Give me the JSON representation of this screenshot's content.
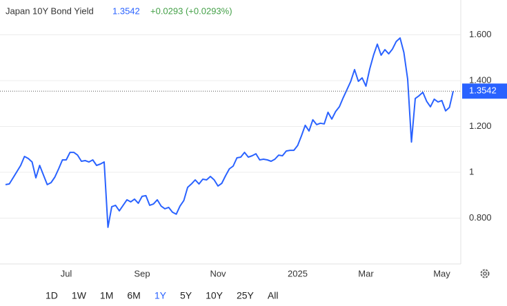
{
  "chart_data": {
    "type": "line",
    "title": "Japan 10Y Bond Yield",
    "last_value": 1.3542,
    "change": "+0.0293 (+0.0293%)",
    "color": "#2962ff",
    "grid": true,
    "ylim": [
      0.6,
      1.75
    ],
    "yticks": [
      {
        "value": 0.8,
        "label": "0.800"
      },
      1,
      {
        "value": 1.2,
        "label": "1.200"
      },
      {
        "value": 1.4,
        "label": "1.400"
      },
      {
        "value": 1.6,
        "label": "1.600"
      }
    ],
    "categories": [
      null,
      null,
      null,
      null,
      null,
      null,
      null,
      null,
      null,
      null,
      null,
      null,
      null,
      null,
      null,
      null,
      "Jul",
      null,
      null,
      null,
      null,
      null,
      null,
      null,
      null,
      null,
      null,
      null,
      null,
      null,
      null,
      null,
      null,
      null,
      null,
      null,
      "Sep",
      null,
      null,
      null,
      null,
      null,
      null,
      null,
      null,
      null,
      null,
      null,
      null,
      null,
      null,
      null,
      null,
      null,
      null,
      null,
      "Nov",
      null,
      null,
      null,
      null,
      null,
      null,
      null,
      null,
      null,
      null,
      null,
      null,
      null,
      null,
      null,
      null,
      null,
      null,
      null,
      null,
      "2025",
      null,
      null,
      null,
      null,
      null,
      null,
      null,
      null,
      null,
      null,
      null,
      null,
      null,
      null,
      null,
      null,
      null,
      "Mar",
      null,
      null,
      null,
      null,
      null,
      null,
      null,
      null,
      null,
      null,
      null,
      null,
      null,
      null,
      null,
      null,
      null,
      null,
      null,
      "May",
      null,
      null,
      null
    ],
    "values": [
      0.946,
      0.949,
      0.976,
      1.003,
      1.03,
      1.069,
      1.06,
      1.045,
      0.976,
      1.03,
      0.988,
      0.946,
      0.955,
      0.979,
      1.015,
      1.054,
      1.054,
      1.087,
      1.087,
      1.075,
      1.048,
      1.051,
      1.045,
      1.054,
      1.03,
      1.036,
      1.045,
      0.76,
      0.85,
      0.856,
      0.832,
      0.856,
      0.88,
      0.871,
      0.883,
      0.865,
      0.895,
      0.898,
      0.856,
      0.862,
      0.88,
      0.853,
      0.841,
      0.847,
      0.826,
      0.817,
      0.853,
      0.877,
      0.934,
      0.949,
      0.967,
      0.949,
      0.97,
      0.967,
      0.982,
      0.967,
      0.94,
      0.952,
      0.985,
      1.015,
      1.027,
      1.063,
      1.066,
      1.087,
      1.066,
      1.072,
      1.081,
      1.054,
      1.057,
      1.054,
      1.048,
      1.057,
      1.075,
      1.072,
      1.093,
      1.096,
      1.096,
      1.117,
      1.159,
      1.205,
      1.18,
      1.229,
      1.208,
      1.214,
      1.211,
      1.262,
      1.232,
      1.265,
      1.286,
      1.325,
      1.361,
      1.397,
      1.448,
      1.397,
      1.412,
      1.376,
      1.451,
      1.511,
      1.559,
      1.511,
      1.535,
      1.517,
      1.538,
      1.571,
      1.586,
      1.523,
      1.406,
      1.132,
      1.322,
      1.334,
      1.349,
      1.31,
      1.286,
      1.319,
      1.307,
      1.313,
      1.268,
      1.283,
      1.3542
    ]
  },
  "range_buttons": [
    "1D",
    "1W",
    "1M",
    "6M",
    "1Y",
    "5Y",
    "10Y",
    "25Y",
    "All"
  ],
  "selected_range": "1Y"
}
